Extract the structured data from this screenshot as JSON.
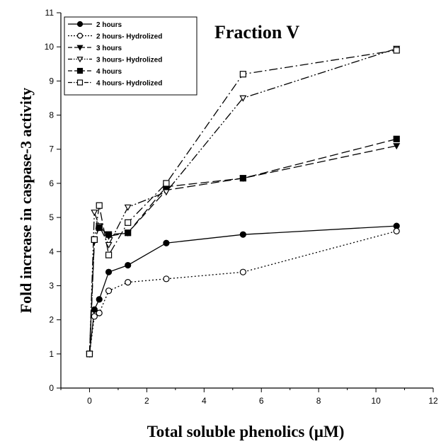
{
  "chart_data": {
    "type": "line",
    "title": "Fraction V",
    "xlabel": "Total soluble phenolics (µM)",
    "ylabel": "Fold increase in caspase-3 activity",
    "xlim": [
      -1,
      12
    ],
    "ylim": [
      0,
      11
    ],
    "xticks": [
      "0",
      "2",
      "4",
      "6",
      "8",
      "10",
      "12"
    ],
    "yticks": [
      "0",
      "1",
      "2",
      "3",
      "4",
      "5",
      "6",
      "7",
      "8",
      "9",
      "10",
      "11"
    ],
    "grid": false,
    "legend_position": "top-left",
    "series": [
      {
        "name": "2 hours",
        "marker": "filled-circle",
        "dash": "solid",
        "x": [
          0,
          0.17,
          0.34,
          0.67,
          1.34,
          2.68,
          5.36,
          10.72
        ],
        "y": [
          1.0,
          2.3,
          2.6,
          3.4,
          3.6,
          4.25,
          4.5,
          4.75
        ]
      },
      {
        "name": "2 hours- Hydrolized",
        "marker": "open-circle",
        "dash": "dotted",
        "x": [
          0,
          0.17,
          0.34,
          0.67,
          1.34,
          2.68,
          5.36,
          10.72
        ],
        "y": [
          1.0,
          2.1,
          2.2,
          2.85,
          3.1,
          3.2,
          3.4,
          4.6
        ]
      },
      {
        "name": "3 hours",
        "marker": "filled-triangle-down",
        "dash": "long-dash",
        "x": [
          0,
          0.17,
          0.34,
          0.67,
          1.34,
          2.68,
          5.36,
          10.72
        ],
        "y": [
          1.0,
          4.3,
          4.75,
          4.45,
          4.55,
          5.8,
          6.15,
          7.1
        ]
      },
      {
        "name": "3 hours- Hydrolized",
        "marker": "open-triangle-down",
        "dash": "dash-dot-dot",
        "x": [
          0,
          0.17,
          0.34,
          0.67,
          1.34,
          2.68,
          5.36,
          10.72
        ],
        "y": [
          1.0,
          5.15,
          4.75,
          4.2,
          5.3,
          5.75,
          8.5,
          9.95
        ]
      },
      {
        "name": "4 hours",
        "marker": "filled-square",
        "dash": "long-dash",
        "x": [
          0,
          0.17,
          0.34,
          0.67,
          1.34,
          2.68,
          5.36,
          10.72
        ],
        "y": [
          1.0,
          4.35,
          4.7,
          4.5,
          4.55,
          5.9,
          6.15,
          7.3
        ]
      },
      {
        "name": "4 hours- Hydrolized",
        "marker": "open-square",
        "dash": "dash-dot",
        "x": [
          0,
          0.17,
          0.34,
          0.67,
          1.34,
          2.68,
          5.36,
          10.72
        ],
        "y": [
          1.0,
          4.35,
          5.35,
          3.9,
          4.85,
          6.0,
          9.2,
          9.9
        ]
      }
    ]
  }
}
